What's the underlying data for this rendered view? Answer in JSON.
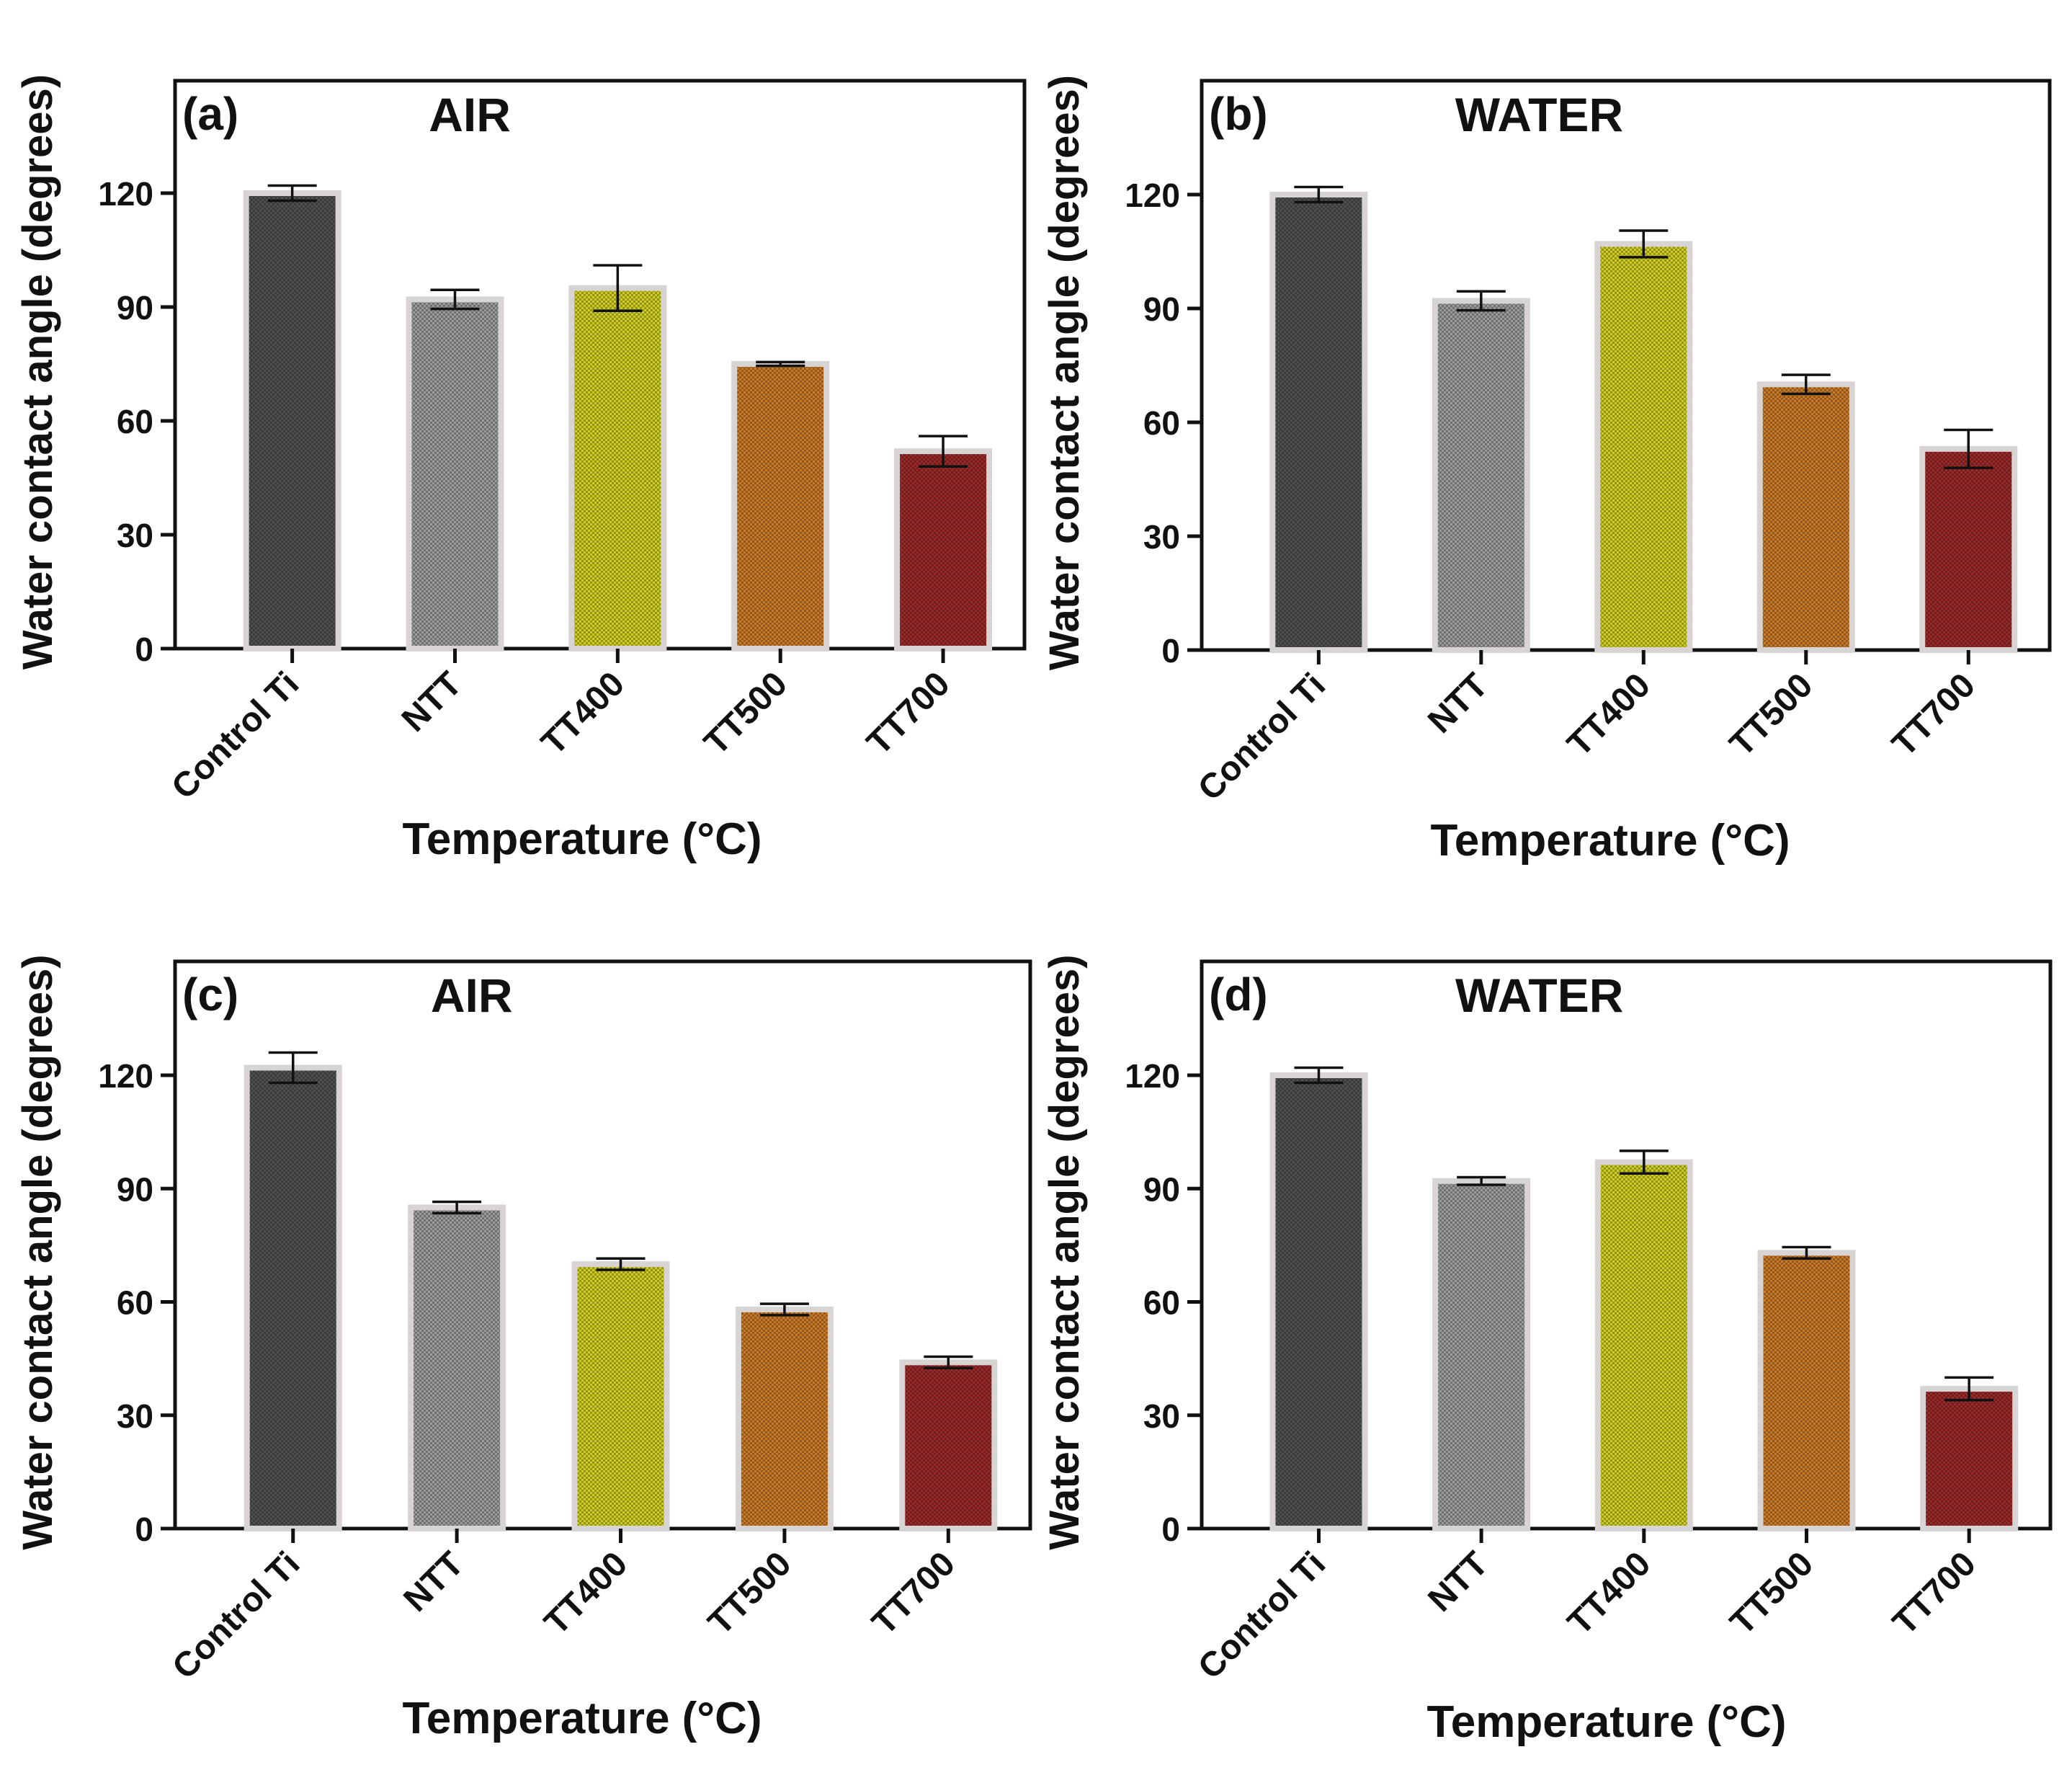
{
  "figure": {
    "colors": {
      "Control Ti": "#505050",
      "NTT": "#9a9a9a",
      "TT400": "#cccc22",
      "TT500": "#c97a28",
      "TT700": "#9a2a2a",
      "axis": "#111111",
      "bar_outline": "#d9d4d4"
    }
  },
  "chart_data": [
    {
      "panel": "(a)",
      "title": "AIR",
      "type": "bar",
      "xlabel": "Temperature (°C)",
      "ylabel": "Water contact angle (degrees)",
      "ylim": [
        0,
        150
      ],
      "yticks": [
        0,
        30,
        60,
        90,
        120
      ],
      "categories": [
        "Control Ti",
        "NTT",
        "TT400",
        "TT500",
        "TT700"
      ],
      "values": [
        120,
        92,
        95,
        75,
        52
      ],
      "errors": [
        2,
        2.5,
        6,
        0.5,
        4
      ]
    },
    {
      "panel": "(b)",
      "title": "WATER",
      "type": "bar",
      "xlabel": "Temperature (°C)",
      "ylabel": "Water contact angle (degrees)",
      "ylim": [
        0,
        150
      ],
      "yticks": [
        0,
        30,
        60,
        90,
        120
      ],
      "categories": [
        "Control Ti",
        "NTT",
        "TT400",
        "TT500",
        "TT700"
      ],
      "values": [
        120,
        92,
        107,
        70,
        53
      ],
      "errors": [
        2,
        2.5,
        3.5,
        2.5,
        5
      ]
    },
    {
      "panel": "(c)",
      "title": "AIR",
      "type": "bar",
      "xlabel": "Temperature (°C)",
      "ylabel": "Water contact angle (degrees)",
      "ylim": [
        0,
        150
      ],
      "yticks": [
        0,
        30,
        60,
        90,
        120
      ],
      "categories": [
        "Control Ti",
        "NTT",
        "TT400",
        "TT500",
        "TT700"
      ],
      "values": [
        122,
        85,
        70,
        58,
        44
      ],
      "errors": [
        4,
        1.5,
        1.5,
        1.5,
        1.5
      ]
    },
    {
      "panel": "(d)",
      "title": "WATER",
      "type": "bar",
      "xlabel": "Temperature (°C)",
      "ylabel": "Water contact angle (degrees)",
      "ylim": [
        0,
        150
      ],
      "yticks": [
        0,
        30,
        60,
        90,
        120
      ],
      "categories": [
        "Control Ti",
        "NTT",
        "TT400",
        "TT500",
        "TT700"
      ],
      "values": [
        120,
        92,
        97,
        73,
        37
      ],
      "errors": [
        2,
        1,
        3,
        1.5,
        3
      ]
    }
  ]
}
